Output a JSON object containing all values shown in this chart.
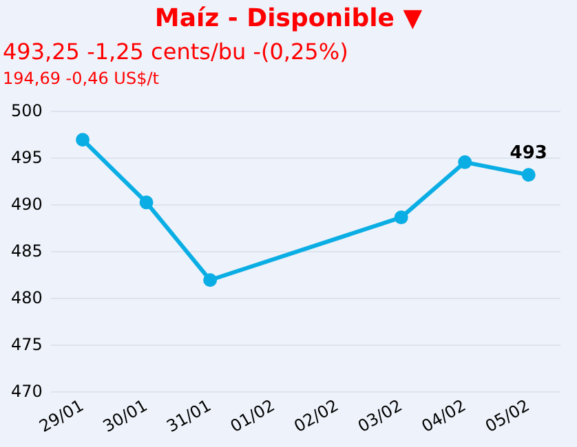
{
  "chart_data": {
    "type": "line",
    "title": "Maíz - Disponible ▼",
    "subtitle": "493,25 -1,25 cents/bu -(0,25%)",
    "annotations": [
      "194,69 -0,46 US$/t"
    ],
    "categories": [
      "29/01",
      "30/01",
      "31/01",
      "01/02",
      "02/02",
      "03/02",
      "04/02",
      "05/02"
    ],
    "series": [
      {
        "color": "#0aaee4",
        "values": [
          497.0,
          490.3,
          482.0,
          null,
          null,
          488.7,
          494.6,
          493.25
        ],
        "value_labels": [
          null,
          null,
          null,
          null,
          null,
          null,
          null,
          "493"
        ]
      }
    ],
    "ylim": [
      470,
      500
    ],
    "yticks": [
      470,
      475,
      480,
      485,
      490,
      495,
      500
    ],
    "grid": "y",
    "legend": false,
    "marker": "circle"
  }
}
